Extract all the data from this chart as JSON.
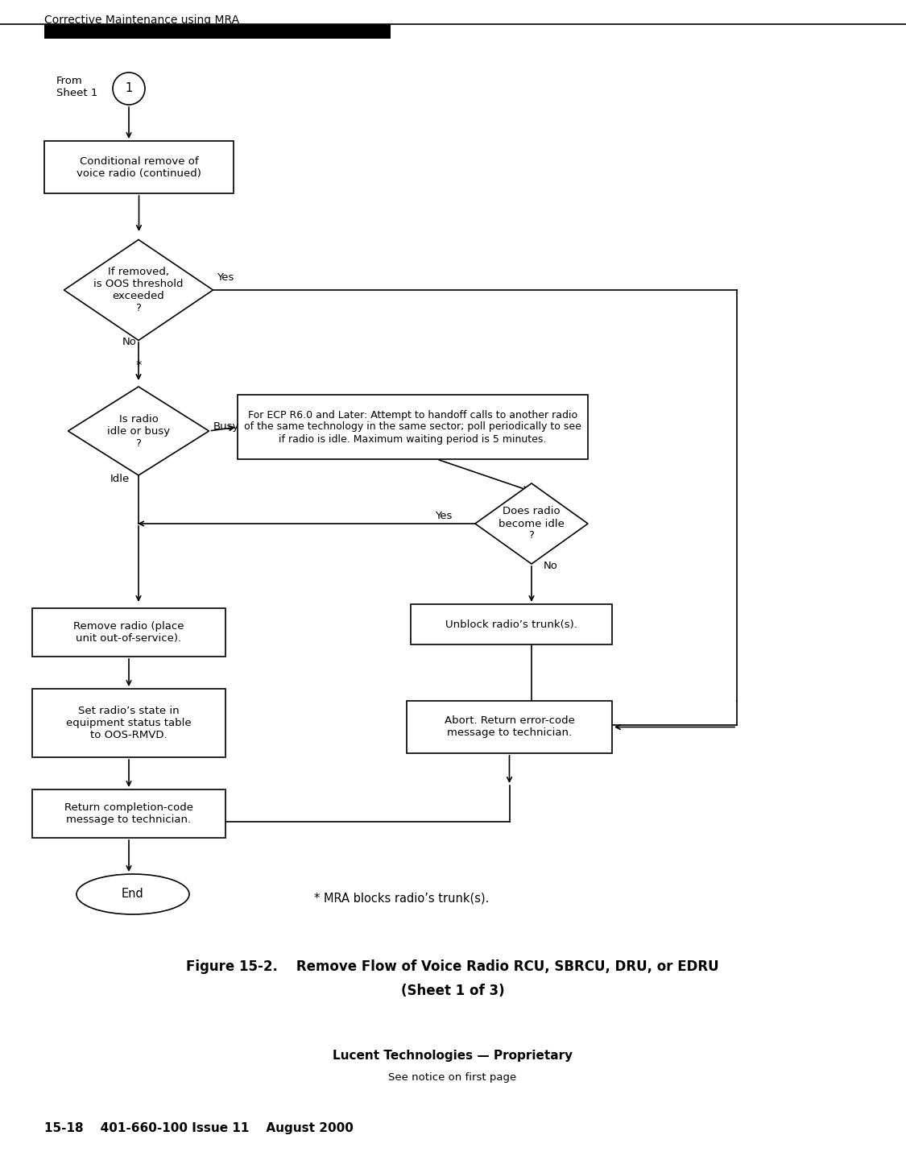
{
  "page_header": "Corrective Maintenance using MRA",
  "figure_caption_line1": "Figure 15-2.    Remove Flow of Voice Radio RCU, SBRCU, DRU, or EDRU",
  "figure_caption_line2": "(Sheet 1 of 3)",
  "footer_line1": "Lucent Technologies — Proprietary",
  "footer_line2": "See notice on first page",
  "footer_line3": "15-18    401-660-100 Issue 11    August 2000",
  "footnote": "* MRA blocks radio’s trunk(s).",
  "bg_color": "#ffffff",
  "box_color": "#000000",
  "text_color": "#000000",
  "font_size": 9.5
}
